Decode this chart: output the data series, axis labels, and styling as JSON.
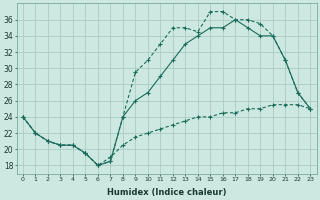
{
  "xlabel": "Humidex (Indice chaleur)",
  "bg_color": "#cce8e0",
  "grid_color": "#aaccC4",
  "line_color": "#1a6b5a",
  "line1_x": [
    0,
    1,
    2,
    3,
    4,
    5,
    6,
    7,
    8,
    9,
    10,
    11,
    12,
    13,
    14,
    15,
    16,
    17,
    18,
    19,
    20,
    21,
    22,
    23
  ],
  "line1_y": [
    24,
    22,
    21,
    20.5,
    20.5,
    19.5,
    18,
    18.5,
    24,
    29.5,
    31,
    33,
    35,
    35,
    34.5,
    37,
    37,
    36,
    36,
    35.5,
    34,
    31,
    27,
    25
  ],
  "line2_x": [
    0,
    1,
    2,
    3,
    4,
    5,
    6,
    7,
    8,
    9,
    10,
    11,
    12,
    13,
    14,
    15,
    16,
    17,
    18,
    19,
    20,
    21,
    22,
    23
  ],
  "line2_y": [
    24,
    22,
    21,
    20.5,
    20.5,
    19.5,
    18,
    18.5,
    24,
    26,
    27,
    29,
    31,
    33,
    34,
    35,
    35,
    36,
    35,
    34,
    34,
    31,
    27,
    25
  ],
  "line3_x": [
    0,
    1,
    2,
    3,
    4,
    5,
    6,
    7,
    8,
    9,
    10,
    11,
    12,
    13,
    14,
    15,
    16,
    17,
    18,
    19,
    20,
    21,
    22,
    23
  ],
  "line3_y": [
    24,
    22,
    21,
    20.5,
    20.5,
    19.5,
    18,
    19,
    20.5,
    21.5,
    22,
    22.5,
    23,
    23.5,
    24,
    24,
    24.5,
    24.5,
    25,
    25,
    25.5,
    25.5,
    25.5,
    25
  ],
  "xlim": [
    -0.5,
    23.5
  ],
  "ylim": [
    17,
    38
  ],
  "yticks": [
    18,
    20,
    22,
    24,
    26,
    28,
    30,
    32,
    34,
    36
  ],
  "xticks": [
    0,
    1,
    2,
    3,
    4,
    5,
    6,
    7,
    8,
    9,
    10,
    11,
    12,
    13,
    14,
    15,
    16,
    17,
    18,
    19,
    20,
    21,
    22,
    23
  ]
}
